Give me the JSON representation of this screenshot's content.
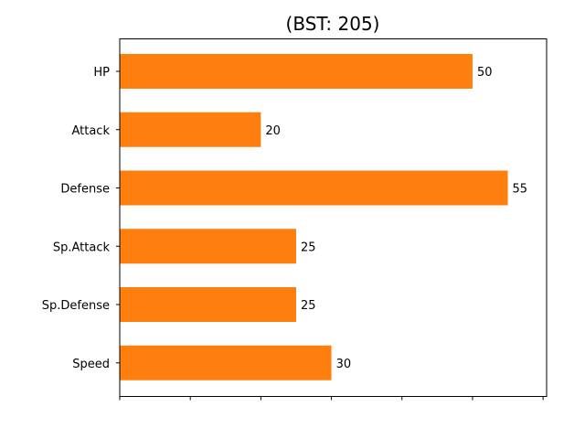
{
  "chart_data": {
    "type": "bar",
    "orientation": "horizontal",
    "title": "(BST: 205)",
    "categories": [
      "HP",
      "Attack",
      "Defense",
      "Sp.Attack",
      "Sp.Defense",
      "Speed"
    ],
    "values": [
      50,
      20,
      55,
      25,
      25,
      30
    ],
    "xlim": [
      0,
      60.5
    ],
    "x_ticks": [
      0,
      10,
      20,
      30,
      40,
      50,
      60
    ],
    "x_tick_labels_shown": false,
    "bar_color": "#ff7f0e",
    "grid": false,
    "legend": "none"
  }
}
